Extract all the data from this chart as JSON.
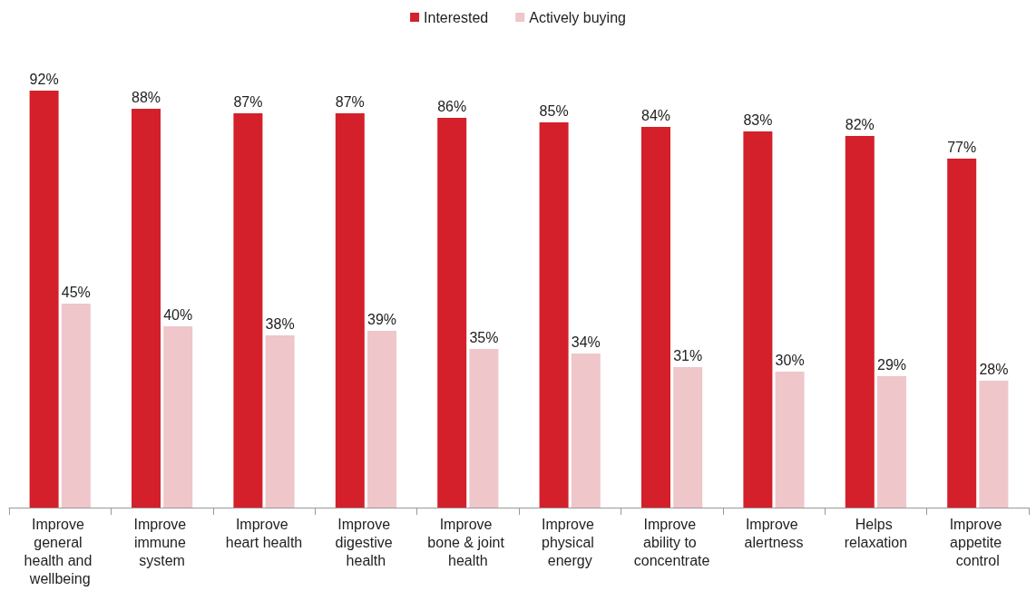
{
  "chart_data": {
    "type": "bar",
    "categories": [
      "Improve general health and wellbeing",
      "Improve immune system",
      "Improve heart health",
      "Improve digestive health",
      "Improve bone & joint health",
      "Improve physical energy",
      "Improve ability to concentrate",
      "Improve alertness",
      "Helps relaxation",
      "Improve appetite control"
    ],
    "series": [
      {
        "name": "Interested",
        "color": "#d3202a",
        "values": [
          92,
          88,
          87,
          87,
          86,
          85,
          84,
          83,
          82,
          77
        ],
        "value_labels": [
          "92%",
          "88%",
          "87%",
          "87%",
          "86%",
          "85%",
          "84%",
          "83%",
          "82%",
          "77%"
        ]
      },
      {
        "name": "Actively buying",
        "color": "#efc6c9",
        "values": [
          45,
          40,
          38,
          39,
          35,
          34,
          31,
          30,
          29,
          28
        ],
        "value_labels": [
          "45%",
          "40%",
          "38%",
          "39%",
          "35%",
          "34%",
          "31%",
          "30%",
          "29%",
          "28%"
        ]
      }
    ],
    "legend": "top"
  }
}
